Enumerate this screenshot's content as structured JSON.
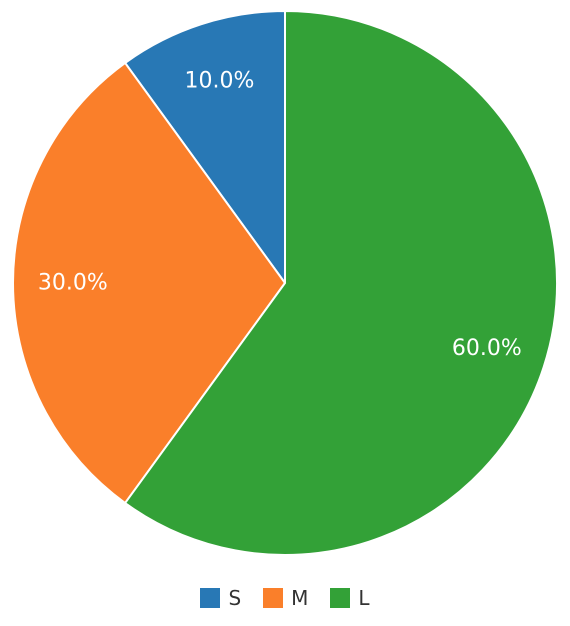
{
  "chart_data": {
    "type": "pie",
    "categories": [
      "S",
      "M",
      "L"
    ],
    "values": [
      10.0,
      30.0,
      60.0
    ],
    "value_labels": [
      "10.0%",
      "30.0%",
      "60.0%"
    ],
    "colors": [
      "#2878b5",
      "#fa7f2a",
      "#33a137"
    ],
    "legend": {
      "placement": "bottom",
      "entries": [
        "S",
        "M",
        "L"
      ]
    }
  }
}
